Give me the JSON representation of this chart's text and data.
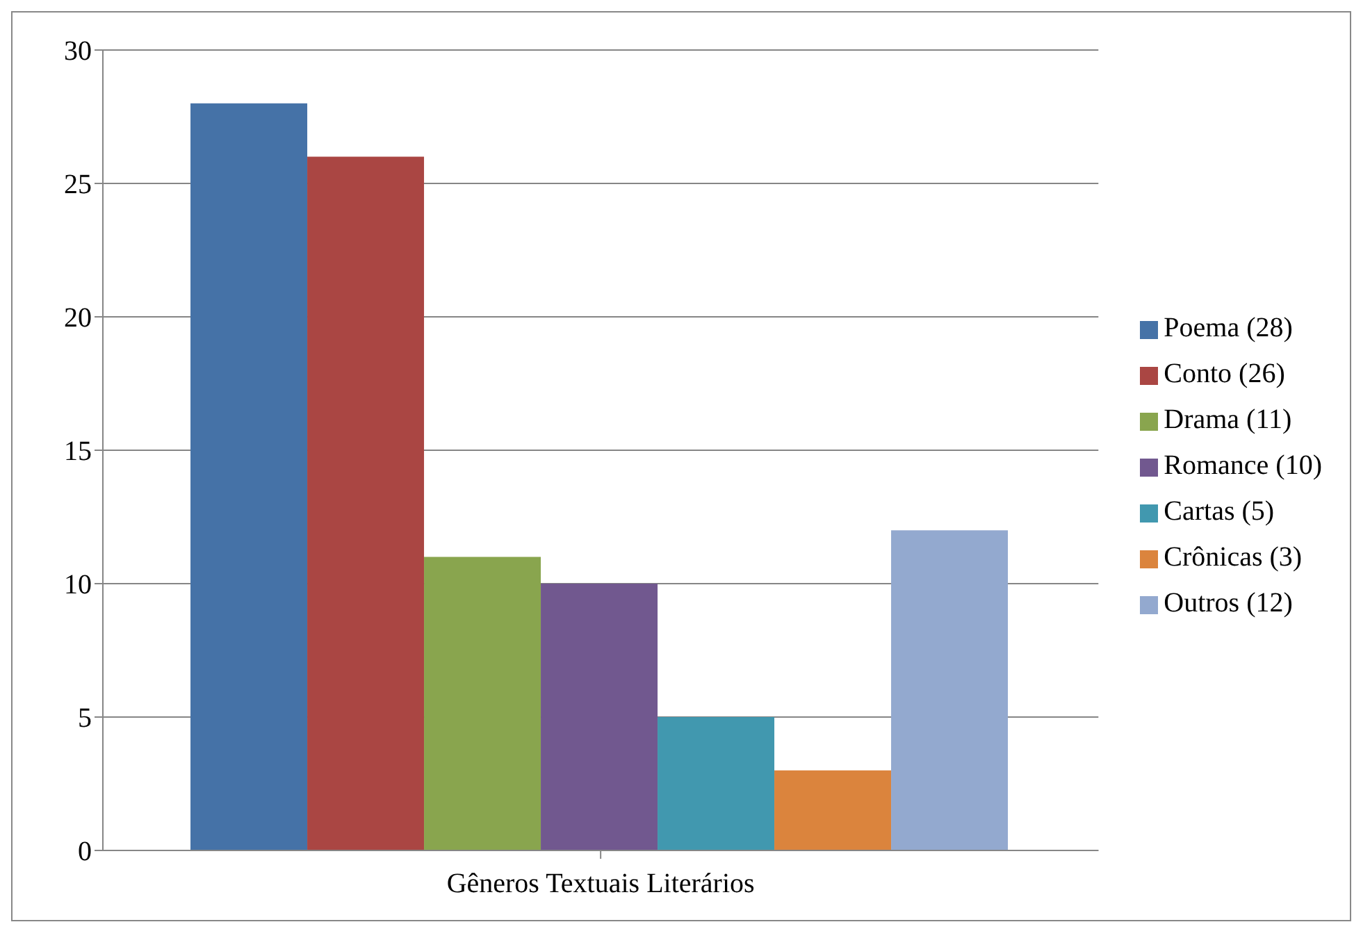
{
  "chart_data": {
    "type": "bar",
    "categories": [
      "Gêneros Textuais Literários"
    ],
    "series": [
      {
        "name": "Poema (28)",
        "color": "#4572a7",
        "values": [
          28
        ]
      },
      {
        "name": "Conto (26)",
        "color": "#aa4643",
        "values": [
          26
        ]
      },
      {
        "name": "Drama (11)",
        "color": "#89a54e",
        "values": [
          11
        ]
      },
      {
        "name": "Romance (10)",
        "color": "#71588f",
        "values": [
          10
        ]
      },
      {
        "name": "Cartas (5)",
        "color": "#4198af",
        "values": [
          5
        ]
      },
      {
        "name": "Crônicas (3)",
        "color": "#db843d",
        "values": [
          3
        ]
      },
      {
        "name": "Outros (12)",
        "color": "#93a9cf",
        "values": [
          12
        ]
      }
    ],
    "ylim": [
      0,
      30
    ],
    "yticks": [
      0,
      5,
      10,
      15,
      20,
      25,
      30
    ],
    "grid": "y",
    "legend": "right"
  }
}
